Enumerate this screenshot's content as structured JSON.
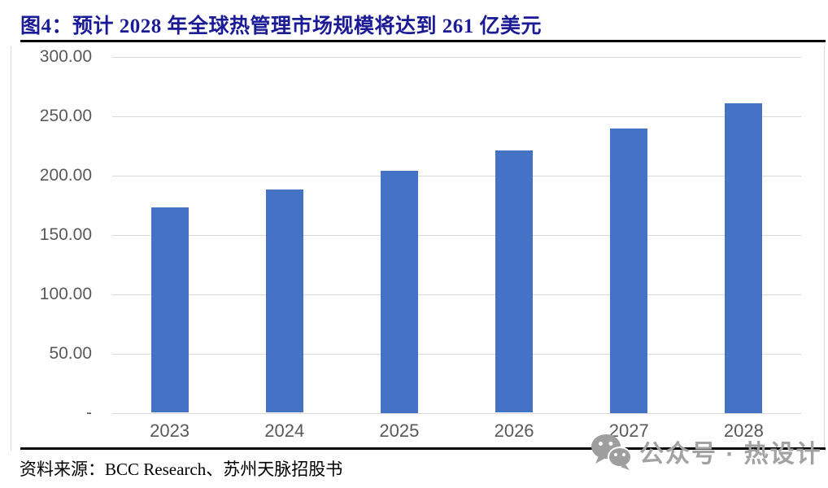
{
  "figure": {
    "title": "图4：预计 2028 年全球热管理市场规模将达到 261 亿美元",
    "source": "资料来源：BCC Research、苏州天脉招股书"
  },
  "watermark": {
    "text": "公众号 · 热设计",
    "icon": "wechat-icon"
  },
  "colors": {
    "bar": "#4472C4",
    "title_navy": "#1B1B96",
    "axis_label": "#595959",
    "gridline": "#D9D9D9",
    "chart_border": "#D6D6D6",
    "divider": "#000000",
    "watermark_gray": "#A2A2A2"
  },
  "chart_data": {
    "type": "bar",
    "categories": [
      "2023",
      "2024",
      "2025",
      "2026",
      "2027",
      "2028"
    ],
    "values": [
      173,
      188,
      204,
      221,
      240,
      261
    ],
    "title": "预计 2028 年全球热管理市场规模将达到 261 亿美元",
    "xlabel": "",
    "ylabel": "",
    "ylim": [
      0,
      300
    ],
    "ytick_step": 50,
    "ytick_labels": [
      "-",
      "50.00",
      "100.00",
      "150.00",
      "200.00",
      "250.00",
      "300.00"
    ],
    "grid": true,
    "legend": false
  }
}
